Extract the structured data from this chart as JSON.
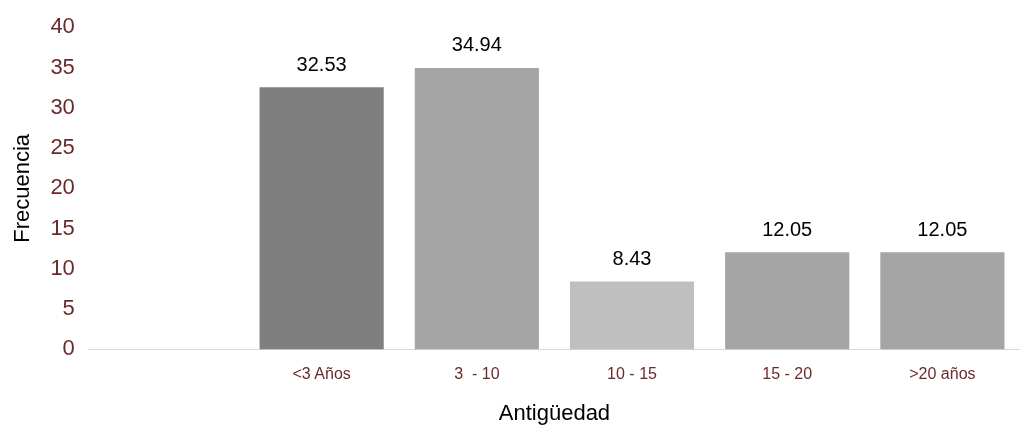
{
  "chart_data": {
    "type": "bar",
    "xlabel": "Antigüedad",
    "ylabel": "Frecuencia",
    "categories": [
      null,
      "<3 Años",
      "3  - 10",
      "10 - 15",
      "15 - 20",
      ">20 años"
    ],
    "values": [
      null,
      32.53,
      34.94,
      8.43,
      12.05,
      12.05
    ],
    "colors": [
      "#a5a5a5",
      "#7f7f7f",
      "#a5a5a5",
      "#bfbfbf",
      "#a5a5a5",
      "#a5a5a5"
    ],
    "ylim": [
      0,
      40
    ],
    "yticks": [
      0,
      5,
      10,
      15,
      20,
      25,
      30,
      35,
      40
    ],
    "grid": false,
    "legend": false,
    "data_labels": true
  }
}
